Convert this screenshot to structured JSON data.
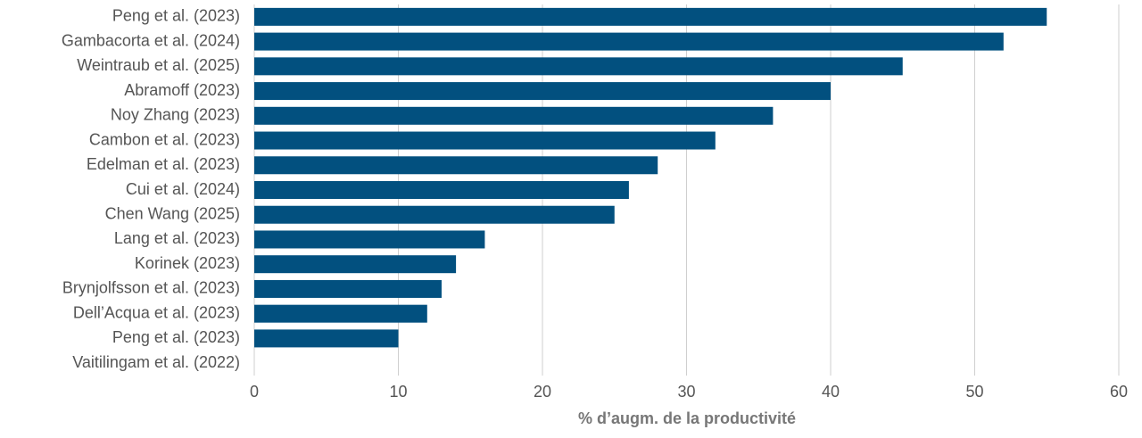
{
  "chart_data": {
    "type": "barh",
    "xlabel": "% d’augm. de la productivité",
    "categories": [
      "Peng et al. (2023)",
      "Gambacorta et al. (2024)",
      "Weintraub et al. (2025)",
      "Abramoff (2023)",
      "Noy Zhang (2023)",
      "Cambon et al. (2023)",
      "Edelman et al. (2023)",
      "Cui et al. (2024)",
      "Chen Wang (2025)",
      "Lang et al. (2023)",
      "Korinek (2023)",
      "Brynjolfsson et al. (2023)",
      "Dell’Acqua et al. (2023)",
      "Peng et al. (2023)",
      "Vaitilingam et al. (2022)"
    ],
    "values": [
      55,
      52,
      45,
      40,
      36,
      32,
      28,
      26,
      25,
      16,
      14,
      13,
      12,
      10,
      0
    ],
    "color": "#02507f",
    "xlim": [
      0,
      60
    ],
    "xticks": [
      0,
      10,
      20,
      30,
      40,
      50,
      60
    ],
    "grid": true
  }
}
